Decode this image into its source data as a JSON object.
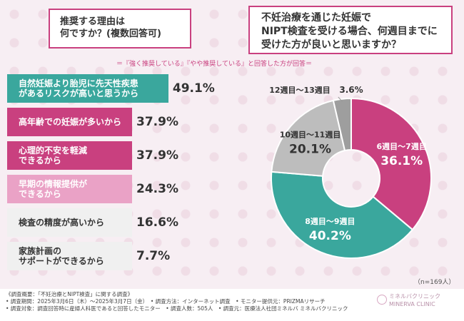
{
  "questions": {
    "left": "推奨する理由は\n何ですか？(複数回答可)",
    "right": "不妊治療を通じた妊娠で\nNIPT検査を受ける場合、何週目までに\n受けた方が良いと思いますか？"
  },
  "note": "＝『強く推奨している』『やや推奨している』と回答した方が回答＝",
  "sample": "（n=169人）",
  "colors": {
    "pink_dark": "#c9407f",
    "pink_mid": "#d86ba0",
    "pink_light": "#eaa2c6",
    "gray_bar": "#f0f0f0",
    "teal": "#3aa79d",
    "gray_pie": "#bdbdbd",
    "gray_pie_dark": "#9e9e9e"
  },
  "chart_data": [
    {
      "type": "bar",
      "orientation": "horizontal",
      "categories": [
        "自然妊娠より胎児に先天性疾患\nがあるリスクが高いと思うから",
        "高年齢での妊娠が多いから",
        "心理的不安を軽減\nできるから",
        "早期の情報提供が\nできるから",
        "検査の精度が高いから",
        "家族計画の\nサポートができるから"
      ],
      "values": [
        49.1,
        37.9,
        37.9,
        24.3,
        16.6,
        7.7
      ],
      "value_labels": [
        "49.1%",
        "37.9%",
        "37.9%",
        "24.3%",
        "16.6%",
        "7.7%"
      ],
      "unit": "%",
      "xlim": [
        0,
        100
      ]
    },
    {
      "type": "pie",
      "labels": [
        "6週目〜7週目",
        "8週目〜9週目",
        "10週目〜11週目",
        "12週目〜13週目"
      ],
      "values": [
        36.1,
        40.2,
        20.1,
        3.6
      ],
      "value_labels": [
        "36.1%",
        "40.2%",
        "20.1%",
        "3.6%"
      ],
      "start": "12 o'clock",
      "direction": "clockwise",
      "donut": true
    }
  ],
  "footer": {
    "lines": [
      "《調査概要：「不妊治療とNIPT検査」に関する調査》",
      "• 調査期間：2025年3月6日（木）〜2025年3月7日（金）　• 調査方法：インターネット調査　• モニター提供元：PRIZMAリサーチ",
      "• 調査対象：調査回答時に産婦人科医であると回答したモニター　• 調査人数：505人　• 調査元：医療法人社団ミネルバ ミネルバクリニック"
    ],
    "logo_text": "ミネルバクリニック",
    "logo_sub": "MINERVA CLINIC"
  }
}
